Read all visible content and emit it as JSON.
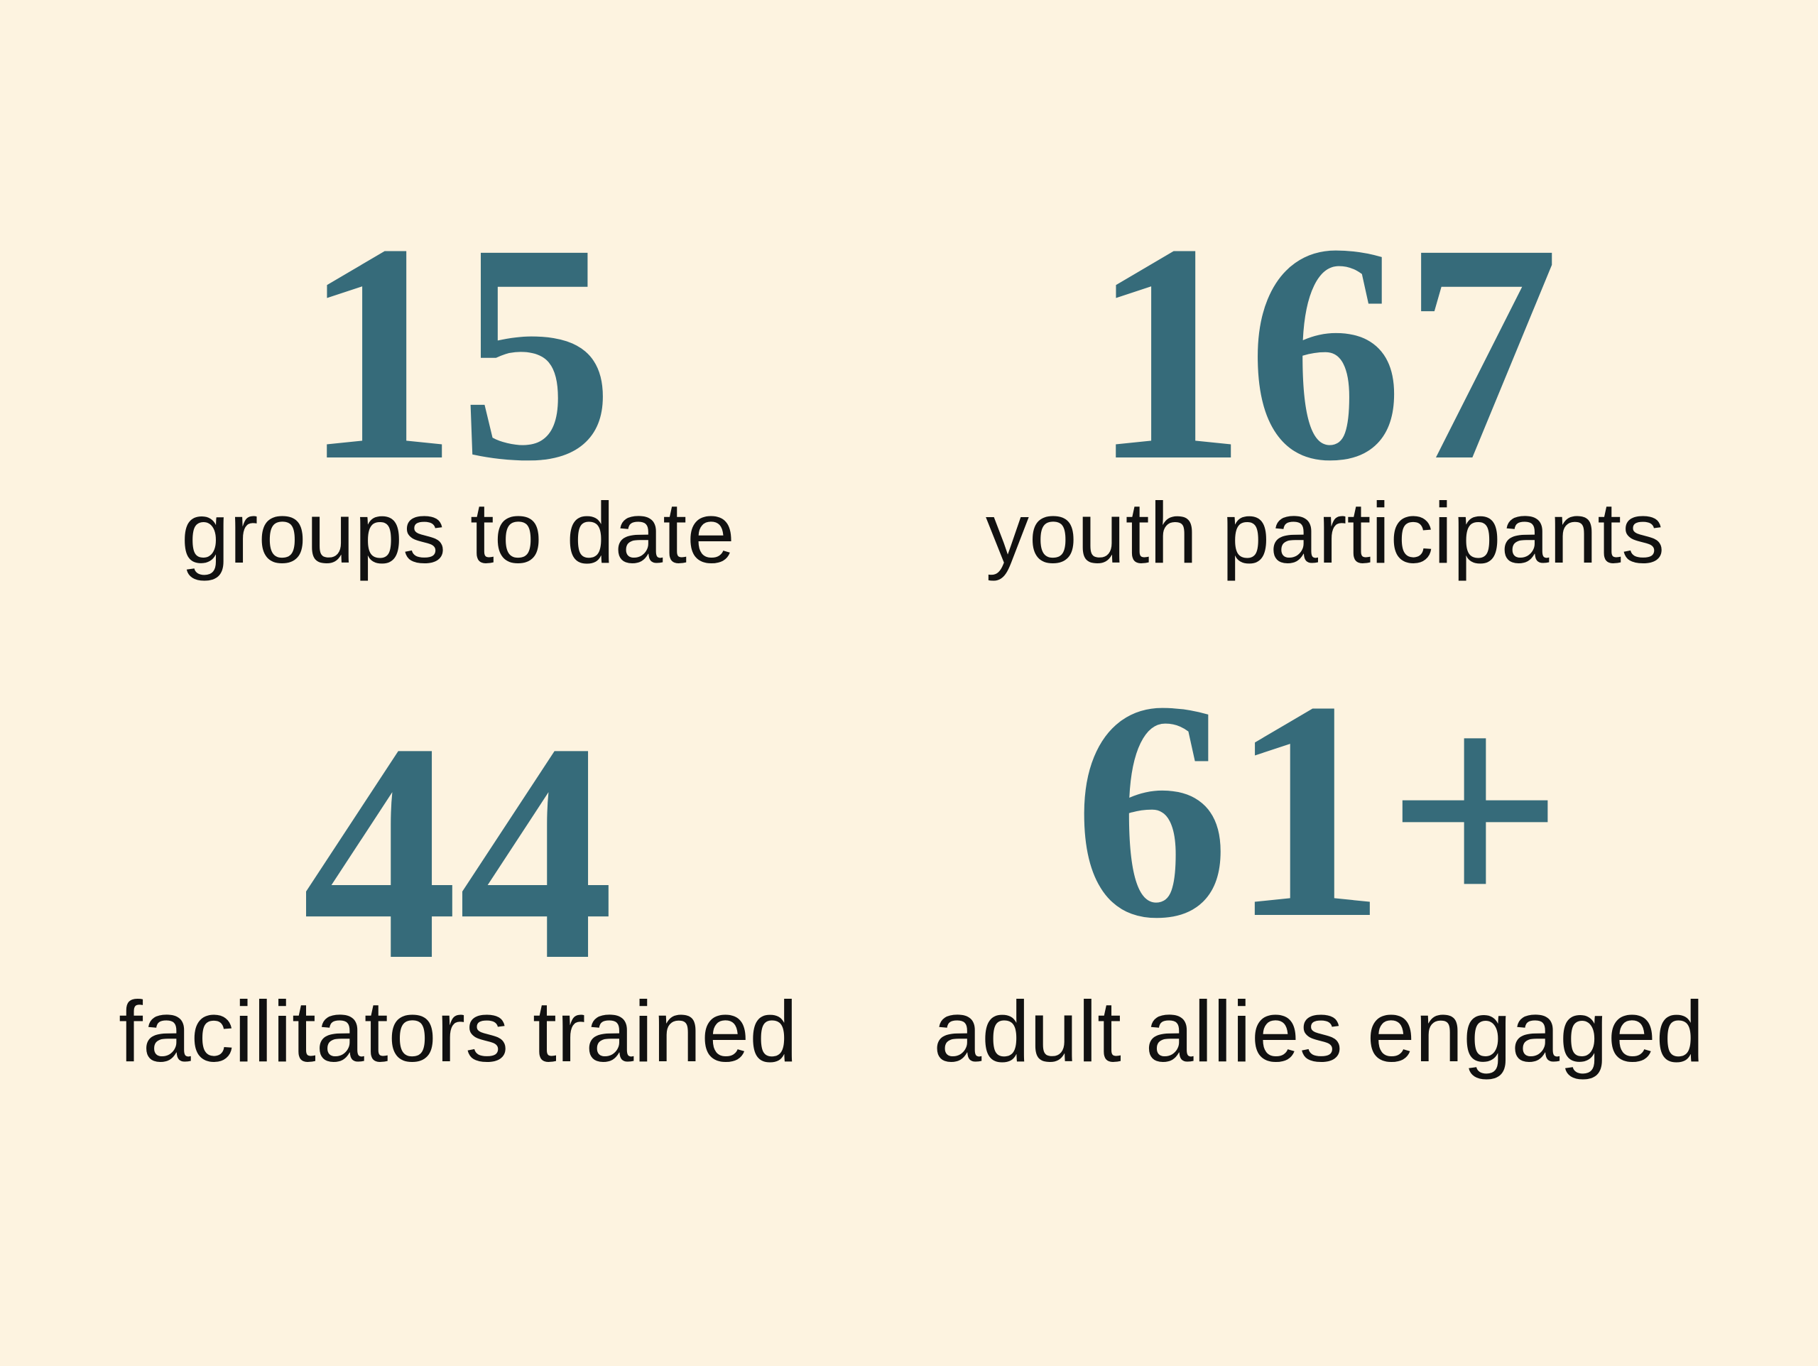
{
  "stats": [
    {
      "value": "15",
      "label": "groups to date"
    },
    {
      "value": "167",
      "label": "youth participants"
    },
    {
      "value": "44",
      "label": "facilitators trained"
    },
    {
      "value": "61+",
      "label": "adult allies engaged"
    }
  ]
}
